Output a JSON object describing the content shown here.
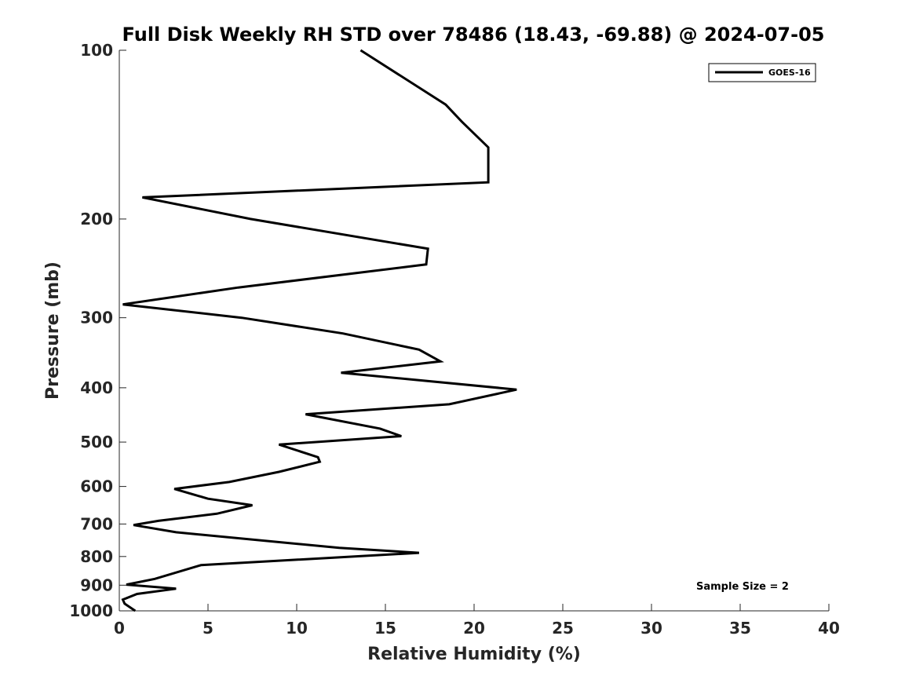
{
  "chart_data": {
    "type": "line",
    "title": "Full Disk Weekly RH STD over 78486 (18.43, -69.88) @ 2024-07-05",
    "xlabel": "Relative Humidity (%)",
    "ylabel": "Pressure (mb)",
    "xlim": [
      0,
      40
    ],
    "ylim": [
      100,
      1000
    ],
    "yscale": "log",
    "y_reversed": true,
    "x_ticks": [
      0,
      5,
      10,
      15,
      20,
      25,
      30,
      35,
      40
    ],
    "y_ticks": [
      100,
      200,
      300,
      400,
      500,
      600,
      700,
      800,
      900,
      1000
    ],
    "grid": false,
    "legend_position": "top-right",
    "annotation": "Sample Size = 2",
    "series": [
      {
        "name": "GOES-16",
        "color": "#000000",
        "points": [
          [
            13.6,
            100
          ],
          [
            18.4,
            125
          ],
          [
            19.3,
            134
          ],
          [
            20.8,
            149
          ],
          [
            20.8,
            172
          ],
          [
            1.3,
            183
          ],
          [
            7.4,
            200
          ],
          [
            17.4,
            226
          ],
          [
            17.3,
            241
          ],
          [
            6.7,
            265
          ],
          [
            0.2,
            284
          ],
          [
            6.9,
            300
          ],
          [
            12.6,
            320
          ],
          [
            16.9,
            342
          ],
          [
            18.1,
            359
          ],
          [
            12.5,
            376
          ],
          [
            22.4,
            403
          ],
          [
            18.6,
            428
          ],
          [
            10.5,
            446
          ],
          [
            14.7,
            473
          ],
          [
            15.9,
            488
          ],
          [
            9.0,
            505
          ],
          [
            11.2,
            532
          ],
          [
            11.3,
            542
          ],
          [
            9.0,
            565
          ],
          [
            6.2,
            589
          ],
          [
            3.1,
            606
          ],
          [
            5.0,
            631
          ],
          [
            7.5,
            648
          ],
          [
            5.5,
            671
          ],
          [
            2.2,
            691
          ],
          [
            0.8,
            703
          ],
          [
            3.2,
            724
          ],
          [
            12.4,
            772
          ],
          [
            16.9,
            788
          ],
          [
            4.6,
            829
          ],
          [
            2.0,
            877
          ],
          [
            0.4,
            898
          ],
          [
            3.2,
            913
          ],
          [
            1.0,
            933
          ],
          [
            0.2,
            955
          ],
          [
            0.3,
            971
          ],
          [
            0.9,
            1000
          ]
        ]
      }
    ]
  }
}
